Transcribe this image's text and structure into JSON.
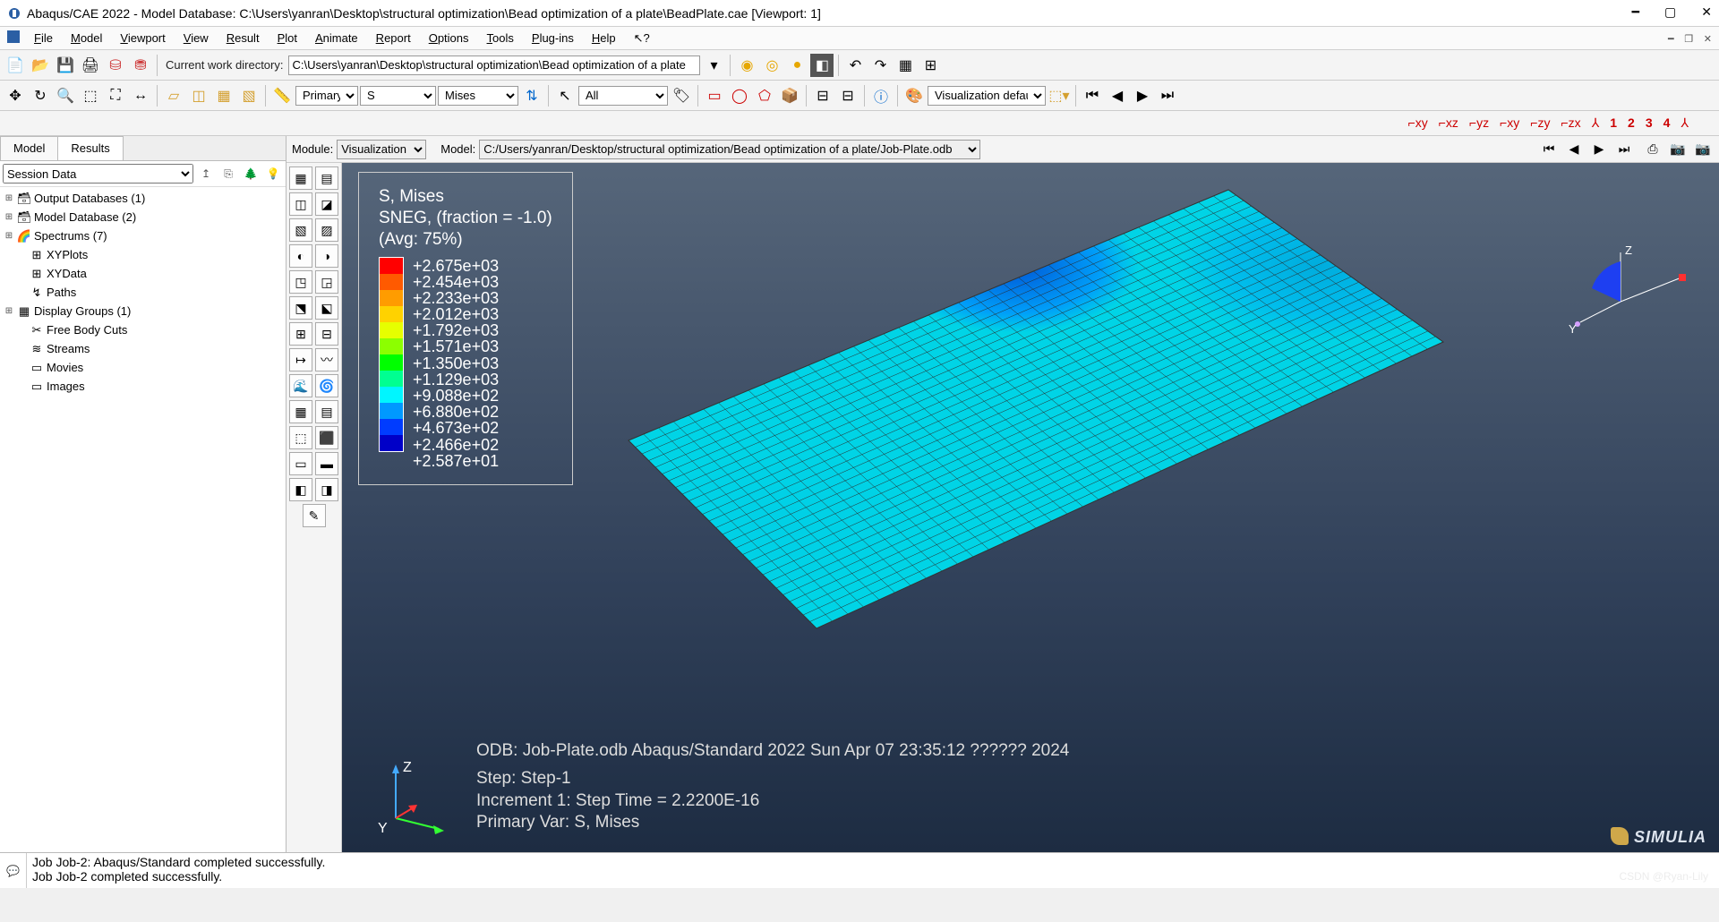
{
  "title": "Abaqus/CAE 2022 - Model Database: C:\\Users\\yanran\\Desktop\\structural optimization\\Bead optimization of a plate\\BeadPlate.cae [Viewport: 1]",
  "menu": [
    "File",
    "Model",
    "Viewport",
    "View",
    "Result",
    "Plot",
    "Animate",
    "Report",
    "Options",
    "Tools",
    "Plug-ins",
    "Help"
  ],
  "cwd_label": "Current work directory:",
  "cwd_value": "C:\\Users\\yanran\\Desktop\\structural optimization\\Bead optimization of a plate",
  "var_primary": "Primary",
  "var_s": "S",
  "var_mises": "Mises",
  "var_all": "All",
  "vis_defaults": "Visualization defaults",
  "axis_nums": [
    "1",
    "2",
    "3",
    "4"
  ],
  "left_tabs": [
    "Model",
    "Results"
  ],
  "session_sel": "Session Data",
  "tree": [
    {
      "exp": "⊞",
      "icon": "🗃",
      "label": "Output Databases (1)",
      "cls": ""
    },
    {
      "exp": "⊞",
      "icon": "🗃",
      "label": "Model Database (2)",
      "cls": ""
    },
    {
      "exp": "⊞",
      "icon": "🌈",
      "label": "Spectrums (7)",
      "cls": ""
    },
    {
      "exp": "",
      "icon": "⊞",
      "label": "XYPlots",
      "cls": "indent1"
    },
    {
      "exp": "",
      "icon": "⊞",
      "label": "XYData",
      "cls": "indent1"
    },
    {
      "exp": "",
      "icon": "↯",
      "label": "Paths",
      "cls": "indent1"
    },
    {
      "exp": "⊞",
      "icon": "▦",
      "label": "Display Groups (1)",
      "cls": ""
    },
    {
      "exp": "",
      "icon": "✂",
      "label": "Free Body Cuts",
      "cls": "indent1"
    },
    {
      "exp": "",
      "icon": "≋",
      "label": "Streams",
      "cls": "indent1"
    },
    {
      "exp": "",
      "icon": "▭",
      "label": "Movies",
      "cls": "indent1"
    },
    {
      "exp": "",
      "icon": "▭",
      "label": "Images",
      "cls": "indent1"
    }
  ],
  "module_label": "Module:",
  "module_value": "Visualization",
  "model_label": "Model:",
  "model_value": "C:/Users/yanran/Desktop/structural optimization/Bead optimization of a plate/Job-Plate.odb",
  "legend": {
    "title1": "S, Mises",
    "title2": "SNEG, (fraction = -1.0)",
    "title3": "(Avg: 75%)",
    "colors": [
      "#ff0000",
      "#ff5a00",
      "#ff9c00",
      "#ffd200",
      "#e6ff00",
      "#8cff00",
      "#00ff00",
      "#00ff91",
      "#00f6ff",
      "#0099ff",
      "#003cff",
      "#0000c8"
    ],
    "values": [
      "+2.675e+03",
      "+2.454e+03",
      "+2.233e+03",
      "+2.012e+03",
      "+1.792e+03",
      "+1.571e+03",
      "+1.350e+03",
      "+1.129e+03",
      "+9.088e+02",
      "+6.880e+02",
      "+4.673e+02",
      "+2.466e+02",
      "+2.587e+01"
    ]
  },
  "vpinfo": {
    "l1": "ODB: Job-Plate.odb    Abaqus/Standard 2022    Sun Apr 07 23:35:12 ?????? 2024",
    "l2": "Step: Step-1",
    "l3": "Increment     1: Step Time =   2.2200E-16",
    "l4": "Primary Var: S, Mises"
  },
  "triad": {
    "z": "Z",
    "y": "Y"
  },
  "compass": {
    "z": "Z",
    "y": "Y"
  },
  "simulia": "SIMULIA",
  "console": [
    "Job Job-2: Abaqus/Standard completed successfully.",
    "Job Job-2 completed successfully."
  ],
  "watermark": "CSDN @Ryan-Lily"
}
